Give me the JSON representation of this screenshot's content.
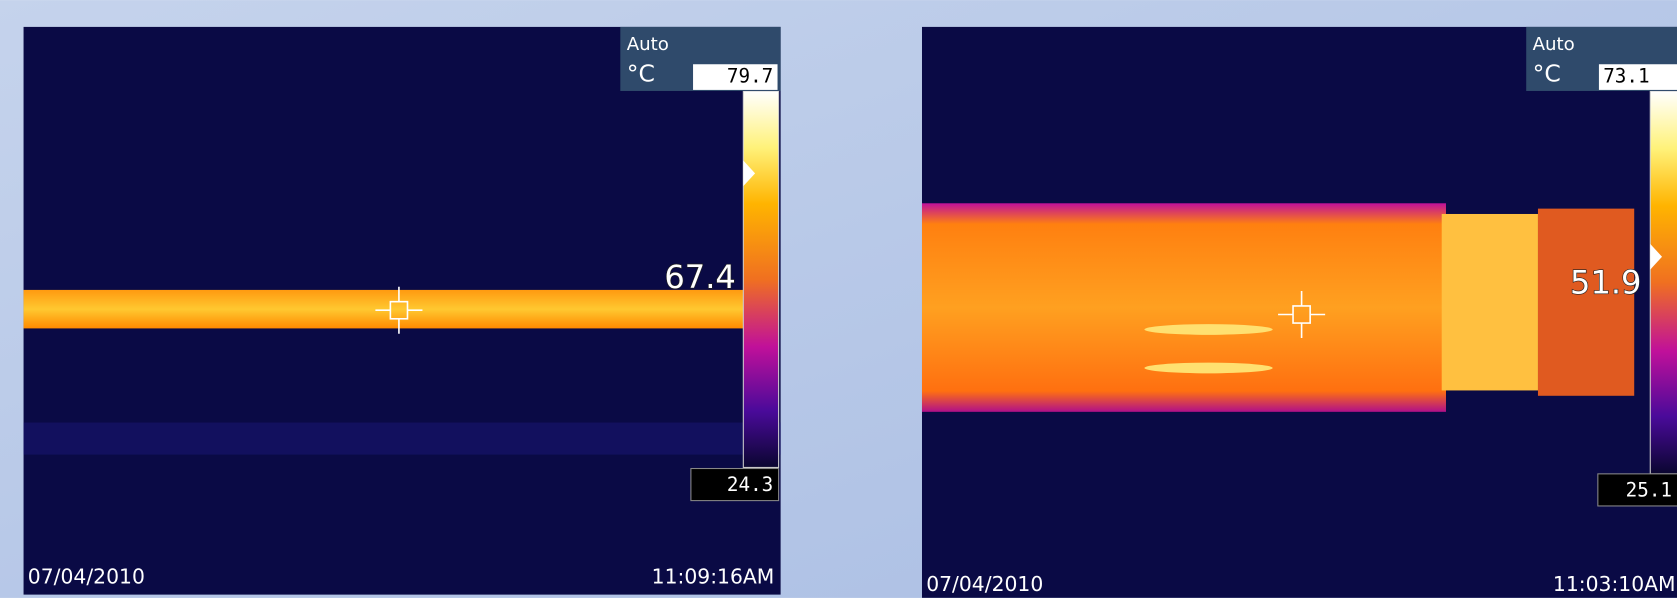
{
  "panels": [
    {
      "mode": "Auto",
      "unit": "°C",
      "range_max": "79.7",
      "range_min": "24.3",
      "spot": "67.4",
      "date": "07/04/2010",
      "time": "11:09:16AM"
    },
    {
      "mode": "Auto",
      "unit": "°C",
      "range_max": "73.1",
      "range_min": "25.1",
      "spot": "51.9",
      "date": "07/04/2010",
      "time": "11:03:10AM"
    }
  ]
}
